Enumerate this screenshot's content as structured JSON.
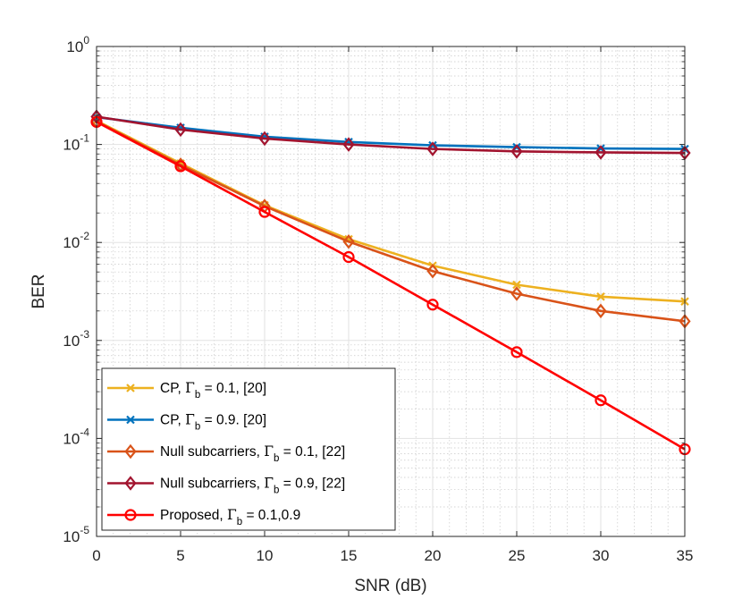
{
  "chart_data": {
    "type": "line",
    "xlabel": "SNR (dB)",
    "ylabel": "BER",
    "xlim": [
      0,
      35
    ],
    "ylim": [
      1e-05,
      1
    ],
    "yscale": "log",
    "grid": true,
    "x_ticks": [
      0,
      5,
      10,
      15,
      20,
      25,
      30,
      35
    ],
    "x_tick_labels": [
      "0",
      "5",
      "10",
      "15",
      "20",
      "25",
      "30",
      "35"
    ],
    "y_ticks": [
      1e-05,
      0.0001,
      0.001,
      0.01,
      0.1,
      1
    ],
    "y_tick_labels": [
      {
        "base": "10",
        "exp": "-5"
      },
      {
        "base": "10",
        "exp": "-4"
      },
      {
        "base": "10",
        "exp": "-3"
      },
      {
        "base": "10",
        "exp": "-2"
      },
      {
        "base": "10",
        "exp": "-1"
      },
      {
        "base": "10",
        "exp": "0"
      }
    ],
    "legend_position": "bottom-left",
    "x": [
      0,
      5,
      10,
      15,
      20,
      25,
      30,
      35
    ],
    "series": [
      {
        "name": "CP, Γb = 0.1, [20]",
        "legend": {
          "pre": "CP, ",
          "sym": "Γ",
          "sub": "b",
          "post": " = 0.1, [20]"
        },
        "color": "#EDB120",
        "marker": "x",
        "values": [
          0.175,
          0.064,
          0.024,
          0.0108,
          0.0058,
          0.0037,
          0.0028,
          0.0025
        ]
      },
      {
        "name": "CP, Γb = 0.9. [20]",
        "legend": {
          "pre": "CP, ",
          "sym": "Γ",
          "sub": "b",
          "post": " = 0.9. [20]"
        },
        "color": "#0072BD",
        "marker": "x",
        "values": [
          0.19,
          0.148,
          0.12,
          0.106,
          0.098,
          0.094,
          0.091,
          0.09
        ]
      },
      {
        "name": "Null subcarriers, Γb = 0.1, [22]",
        "legend": {
          "pre": "Null subcarriers, ",
          "sym": "Γ",
          "sub": "b",
          "post": " = 0.1, [22]"
        },
        "color": "#D95319",
        "marker": "diamond",
        "values": [
          0.172,
          0.062,
          0.0235,
          0.0102,
          0.0051,
          0.003,
          0.002,
          0.00157
        ]
      },
      {
        "name": "Null subcarriers, Γb = 0.9, [22]",
        "legend": {
          "pre": "Null subcarriers, ",
          "sym": "Γ",
          "sub": "b",
          "post": " = 0.9, [22]"
        },
        "color": "#A2142F",
        "marker": "diamond",
        "values": [
          0.192,
          0.142,
          0.115,
          0.1,
          0.09,
          0.085,
          0.083,
          0.082
        ]
      },
      {
        "name": "Proposed, Γb = 0.1,0.9",
        "legend": {
          "pre": "Proposed, ",
          "sym": "Γ",
          "sub": "b",
          "post": " = 0.1,0.9"
        },
        "color": "#FF0000",
        "marker": "circle",
        "values": [
          0.17,
          0.06,
          0.0205,
          0.0071,
          0.00232,
          0.00076,
          0.000245,
          7.75e-05
        ]
      }
    ]
  }
}
